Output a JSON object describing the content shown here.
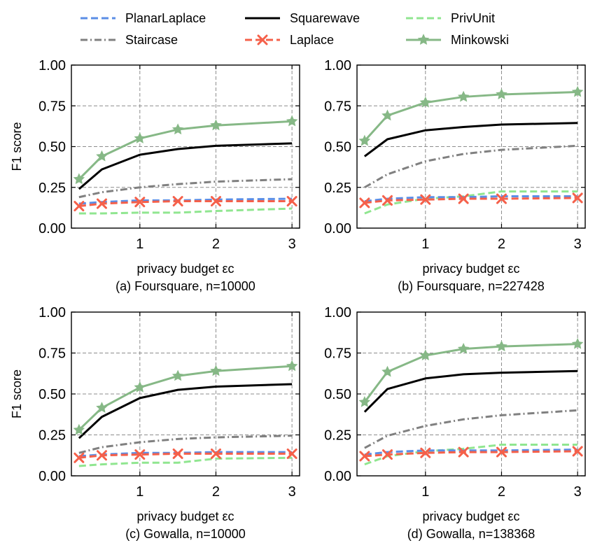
{
  "legend": [
    {
      "name": "PlanarLaplace",
      "color": "#5b8ee6",
      "dash": "10 5",
      "marker": "none",
      "width": 3
    },
    {
      "name": "Squarewave",
      "color": "#000000",
      "dash": "",
      "marker": "none",
      "width": 3
    },
    {
      "name": "PrivUnit",
      "color": "#90e690",
      "dash": "10 5",
      "marker": "none",
      "width": 3
    },
    {
      "name": "Staircase",
      "color": "#808080",
      "dash": "10 4 2 4",
      "marker": "none",
      "width": 3
    },
    {
      "name": "Laplace",
      "color": "#f5604a",
      "dash": "10 5",
      "marker": "x",
      "width": 3
    },
    {
      "name": "Minkowski",
      "color": "#86b886",
      "dash": "",
      "marker": "star",
      "width": 3
    }
  ],
  "chart_data": [
    {
      "type": "line",
      "caption": "(a) Foursquare, n=10000",
      "xlabel": "privacy budget εc",
      "ylabel": "F1 score",
      "xlim": [
        0.1,
        3.1
      ],
      "ylim": [
        0,
        1
      ],
      "xticks": [
        "1",
        "2",
        "3"
      ],
      "yticks": [
        "0.00",
        "0.25",
        "0.50",
        "0.75",
        "1.00"
      ],
      "x": [
        0.2,
        0.5,
        1.0,
        1.5,
        2.0,
        3.0
      ],
      "series": [
        {
          "name": "Staircase",
          "values": [
            0.19,
            0.22,
            0.25,
            0.27,
            0.285,
            0.3
          ]
        },
        {
          "name": "PrivUnit",
          "values": [
            0.09,
            0.09,
            0.095,
            0.095,
            0.105,
            0.12
          ]
        },
        {
          "name": "PlanarLaplace",
          "values": [
            0.15,
            0.16,
            0.17,
            0.17,
            0.175,
            0.18
          ]
        },
        {
          "name": "Laplace",
          "values": [
            0.135,
            0.15,
            0.16,
            0.165,
            0.165,
            0.165
          ]
        },
        {
          "name": "Squarewave",
          "values": [
            0.24,
            0.36,
            0.45,
            0.485,
            0.505,
            0.52
          ]
        },
        {
          "name": "Minkowski",
          "values": [
            0.3,
            0.44,
            0.55,
            0.605,
            0.63,
            0.655
          ]
        }
      ]
    },
    {
      "type": "line",
      "caption": "(b) Foursquare, n=227428",
      "xlabel": "privacy budget εc",
      "ylabel": "",
      "xlim": [
        0.1,
        3.1
      ],
      "ylim": [
        0,
        1
      ],
      "xticks": [
        "1",
        "2",
        "3"
      ],
      "yticks": [
        "0.00",
        "0.25",
        "0.50",
        "0.75",
        "1.00"
      ],
      "x": [
        0.2,
        0.5,
        1.0,
        1.5,
        2.0,
        3.0
      ],
      "series": [
        {
          "name": "Staircase",
          "values": [
            0.25,
            0.33,
            0.41,
            0.455,
            0.48,
            0.505
          ]
        },
        {
          "name": "PrivUnit",
          "values": [
            0.09,
            0.145,
            0.18,
            0.195,
            0.225,
            0.225
          ]
        },
        {
          "name": "PlanarLaplace",
          "values": [
            0.165,
            0.18,
            0.19,
            0.19,
            0.195,
            0.195
          ]
        },
        {
          "name": "Laplace",
          "values": [
            0.155,
            0.17,
            0.175,
            0.18,
            0.18,
            0.185
          ]
        },
        {
          "name": "Squarewave",
          "values": [
            0.44,
            0.545,
            0.6,
            0.62,
            0.635,
            0.645
          ]
        },
        {
          "name": "Minkowski",
          "values": [
            0.535,
            0.69,
            0.77,
            0.805,
            0.82,
            0.835
          ]
        }
      ]
    },
    {
      "type": "line",
      "caption": "(c) Gowalla, n=10000",
      "xlabel": "privacy budget εc",
      "ylabel": "F1 score",
      "xlim": [
        0.1,
        3.1
      ],
      "ylim": [
        0,
        1
      ],
      "xticks": [
        "1",
        "2",
        "3"
      ],
      "yticks": [
        "0.00",
        "0.25",
        "0.50",
        "0.75",
        "1.00"
      ],
      "x": [
        0.2,
        0.5,
        1.0,
        1.5,
        2.0,
        3.0
      ],
      "series": [
        {
          "name": "Staircase",
          "values": [
            0.14,
            0.175,
            0.205,
            0.225,
            0.235,
            0.245
          ]
        },
        {
          "name": "PrivUnit",
          "values": [
            0.06,
            0.07,
            0.08,
            0.08,
            0.105,
            0.11
          ]
        },
        {
          "name": "PlanarLaplace",
          "values": [
            0.12,
            0.13,
            0.14,
            0.14,
            0.145,
            0.145
          ]
        },
        {
          "name": "Laplace",
          "values": [
            0.11,
            0.125,
            0.13,
            0.135,
            0.135,
            0.135
          ]
        },
        {
          "name": "Squarewave",
          "values": [
            0.23,
            0.36,
            0.475,
            0.525,
            0.545,
            0.56
          ]
        },
        {
          "name": "Minkowski",
          "values": [
            0.28,
            0.415,
            0.54,
            0.61,
            0.64,
            0.67
          ]
        }
      ]
    },
    {
      "type": "line",
      "caption": "(d) Gowalla, n=138368",
      "xlabel": "privacy budget εc",
      "ylabel": "",
      "xlim": [
        0.1,
        3.1
      ],
      "ylim": [
        0,
        1
      ],
      "xticks": [
        "1",
        "2",
        "3"
      ],
      "yticks": [
        "0.00",
        "0.25",
        "0.50",
        "0.75",
        "1.00"
      ],
      "x": [
        0.2,
        0.5,
        1.0,
        1.5,
        2.0,
        3.0
      ],
      "series": [
        {
          "name": "Staircase",
          "values": [
            0.17,
            0.245,
            0.305,
            0.345,
            0.37,
            0.4
          ]
        },
        {
          "name": "PrivUnit",
          "values": [
            0.07,
            0.12,
            0.15,
            0.165,
            0.19,
            0.19
          ]
        },
        {
          "name": "PlanarLaplace",
          "values": [
            0.13,
            0.145,
            0.155,
            0.155,
            0.155,
            0.16
          ]
        },
        {
          "name": "Laplace",
          "values": [
            0.12,
            0.13,
            0.14,
            0.145,
            0.145,
            0.15
          ]
        },
        {
          "name": "Squarewave",
          "values": [
            0.39,
            0.53,
            0.595,
            0.62,
            0.63,
            0.64
          ]
        },
        {
          "name": "Minkowski",
          "values": [
            0.45,
            0.635,
            0.735,
            0.775,
            0.79,
            0.805
          ]
        }
      ]
    }
  ]
}
